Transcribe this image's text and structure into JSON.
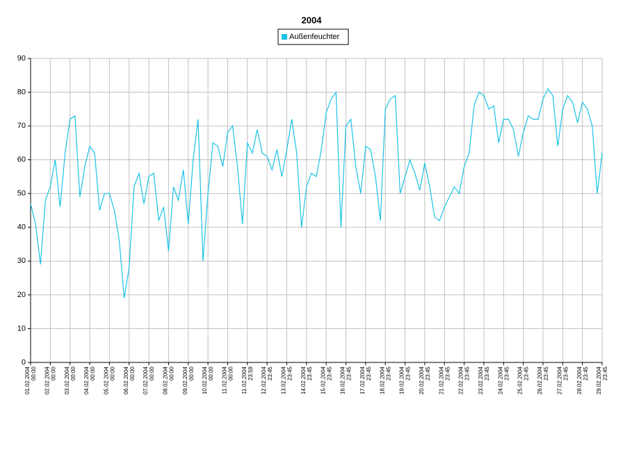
{
  "chart_data": {
    "type": "line",
    "title": "2004",
    "categories": [
      [
        "01.02.2004",
        "00:00"
      ],
      null,
      null,
      null,
      [
        "02.02.2004",
        "00:00"
      ],
      null,
      null,
      null,
      [
        "03.02.2004",
        "00:00"
      ],
      null,
      null,
      null,
      [
        "04.02.2004",
        "00:00"
      ],
      null,
      null,
      null,
      [
        "05.02.2004",
        "00:00"
      ],
      null,
      null,
      null,
      [
        "06.02.2004",
        "00:00"
      ],
      null,
      null,
      null,
      [
        "07.02.2004",
        "00:00"
      ],
      null,
      null,
      null,
      [
        "08.02.2004",
        "00:00"
      ],
      null,
      null,
      null,
      [
        "09.02.2004",
        "00:00"
      ],
      null,
      null,
      null,
      [
        "10.02.2004",
        "00:00"
      ],
      null,
      null,
      null,
      [
        "11.02.2004",
        "00:00"
      ],
      null,
      null,
      null,
      [
        "11.02.2004",
        "23:59"
      ],
      null,
      null,
      null,
      [
        "12.02.2004",
        "23:45"
      ],
      null,
      null,
      null,
      [
        "13.02.2004",
        "23:45"
      ],
      null,
      null,
      null,
      [
        "14.02.2004",
        "23:45"
      ],
      null,
      null,
      null,
      [
        "15.02.2004",
        "23:45"
      ],
      null,
      null,
      null,
      [
        "16.02.2004",
        "23:45"
      ],
      null,
      null,
      null,
      [
        "17.02.2004",
        "23:45"
      ],
      null,
      null,
      null,
      [
        "18.02.2004",
        "23:45"
      ],
      null,
      null,
      null,
      [
        "19.02.2004",
        "23:45"
      ],
      null,
      null,
      null,
      [
        "20.02.2004",
        "23:45"
      ],
      null,
      null,
      null,
      [
        "21.02.2004",
        "23:45"
      ],
      null,
      null,
      null,
      [
        "22.02.2004",
        "23:45"
      ],
      null,
      null,
      null,
      [
        "23.02.2004",
        "23:45"
      ],
      null,
      null,
      null,
      [
        "24.02.2004",
        "23:45"
      ],
      null,
      null,
      null,
      [
        "25.02.2004",
        "23:45"
      ],
      null,
      null,
      null,
      [
        "26.02.2004",
        "23:45"
      ],
      null,
      null,
      null,
      [
        "27.02.2004",
        "23:45"
      ],
      null,
      null,
      null,
      [
        "28.02.2004",
        "23:45"
      ],
      null,
      null,
      null,
      [
        "29.02.2004",
        "23:45"
      ]
    ],
    "series": [
      {
        "name": "Außenfeuchter",
        "color": "#19c3e6",
        "values": [
          47,
          41,
          29,
          48,
          52,
          60,
          46,
          62,
          72,
          73,
          49,
          58,
          64,
          62,
          45,
          50,
          50,
          45,
          36,
          19,
          28,
          52,
          56,
          47,
          55,
          56,
          42,
          46,
          33,
          52,
          48,
          57,
          41,
          60,
          72,
          30,
          50,
          65,
          64,
          58,
          68,
          70,
          58,
          41,
          65,
          62,
          69,
          62,
          61,
          57,
          63,
          55,
          63,
          72,
          62,
          40,
          52,
          56,
          55,
          63,
          74,
          78,
          80,
          40,
          70,
          72,
          58,
          50,
          64,
          63,
          55,
          42,
          75,
          78,
          79,
          50,
          55,
          60,
          56,
          51,
          59,
          52,
          43,
          42,
          46,
          49,
          52,
          50,
          58,
          62,
          76,
          80,
          79,
          75,
          76,
          65,
          72,
          72,
          69,
          61,
          68,
          73,
          72,
          72,
          78,
          81,
          79,
          64,
          75,
          79,
          77,
          71,
          77,
          75,
          70,
          50,
          62
        ]
      }
    ],
    "ylim": [
      0,
      90
    ],
    "yticks": [
      0,
      10,
      20,
      30,
      40,
      50,
      60,
      70,
      80,
      90
    ],
    "grid": true
  }
}
